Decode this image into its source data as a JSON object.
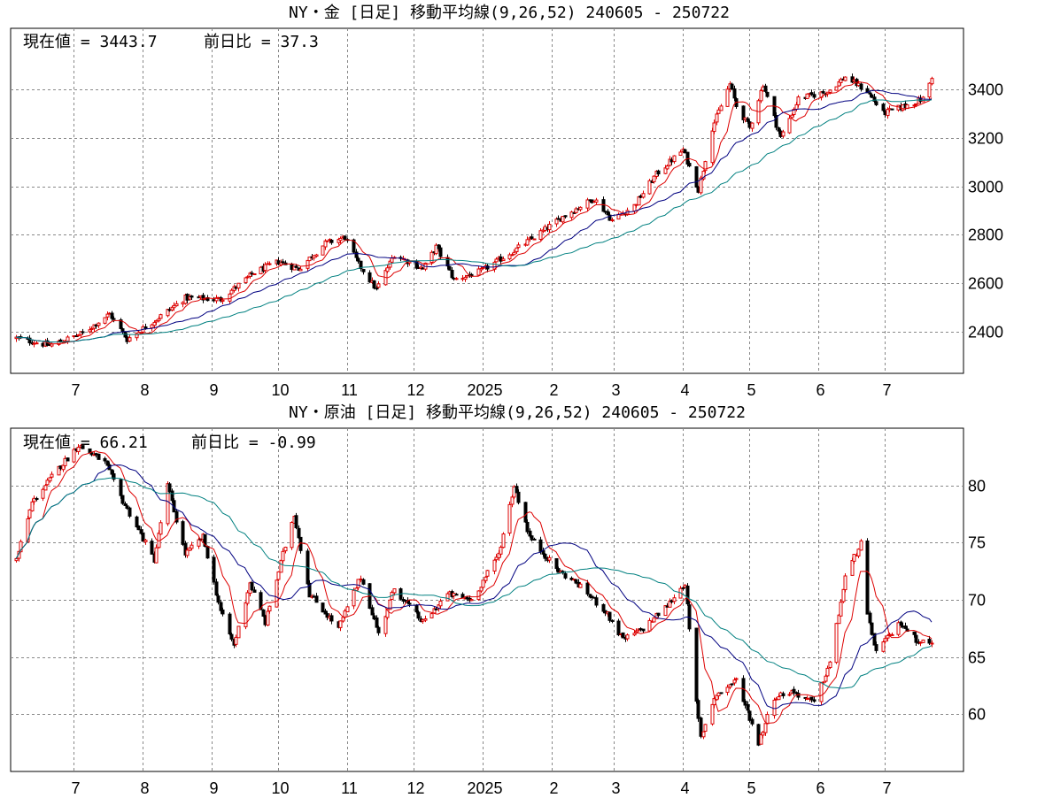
{
  "chart_data": [
    {
      "type": "candlestick",
      "title": "NY・金 [日足] 移動平均線(9,26,52) 240605 - 250722",
      "info_current": "現在値 = 3443.7",
      "info_change": "前日比 = 37.3",
      "ylim": [
        2230,
        3650
      ],
      "yticks": [
        2400,
        2600,
        2800,
        3000,
        3200,
        3400
      ],
      "xticks": [
        {
          "label": "7",
          "date": "2024-07-01"
        },
        {
          "label": "8",
          "date": "2024-08-01"
        },
        {
          "label": "9",
          "date": "2024-09-01"
        },
        {
          "label": "10",
          "date": "2024-10-01"
        },
        {
          "label": "11",
          "date": "2024-11-01"
        },
        {
          "label": "12",
          "date": "2024-12-01"
        },
        {
          "label": "2025",
          "date": "2025-01-01"
        },
        {
          "label": "2",
          "date": "2025-02-01"
        },
        {
          "label": "3",
          "date": "2025-03-01"
        },
        {
          "label": "4",
          "date": "2025-04-01"
        },
        {
          "label": "5",
          "date": "2025-05-01"
        },
        {
          "label": "6",
          "date": "2025-06-01"
        },
        {
          "label": "7",
          "date": "2025-07-01"
        }
      ],
      "grid": true,
      "moving_averages": [
        {
          "period": 9,
          "color": "#dd0000"
        },
        {
          "period": 26,
          "color": "#000080"
        },
        {
          "period": 52,
          "color": "#008080"
        }
      ],
      "close": [
        {
          "date": "2024-06-05",
          "value": 2375
        },
        {
          "date": "2024-06-20",
          "value": 2345
        },
        {
          "date": "2024-07-05",
          "value": 2395
        },
        {
          "date": "2024-07-17",
          "value": 2475
        },
        {
          "date": "2024-07-25",
          "value": 2370
        },
        {
          "date": "2024-08-05",
          "value": 2440
        },
        {
          "date": "2024-08-20",
          "value": 2540
        },
        {
          "date": "2024-09-05",
          "value": 2535
        },
        {
          "date": "2024-09-20",
          "value": 2645
        },
        {
          "date": "2024-10-01",
          "value": 2690
        },
        {
          "date": "2024-10-10",
          "value": 2660
        },
        {
          "date": "2024-10-22",
          "value": 2765
        },
        {
          "date": "2024-10-31",
          "value": 2790
        },
        {
          "date": "2024-11-06",
          "value": 2680
        },
        {
          "date": "2024-11-14",
          "value": 2575
        },
        {
          "date": "2024-11-22",
          "value": 2720
        },
        {
          "date": "2024-12-05",
          "value": 2660
        },
        {
          "date": "2024-12-11",
          "value": 2750
        },
        {
          "date": "2024-12-19",
          "value": 2615
        },
        {
          "date": "2024-12-31",
          "value": 2650
        },
        {
          "date": "2025-01-15",
          "value": 2735
        },
        {
          "date": "2025-01-24",
          "value": 2790
        },
        {
          "date": "2025-02-06",
          "value": 2875
        },
        {
          "date": "2025-02-20",
          "value": 2950
        },
        {
          "date": "2025-02-28",
          "value": 2860
        },
        {
          "date": "2025-03-10",
          "value": 2920
        },
        {
          "date": "2025-03-20",
          "value": 3050
        },
        {
          "date": "2025-04-01",
          "value": 3150
        },
        {
          "date": "2025-04-08",
          "value": 2985
        },
        {
          "date": "2025-04-14",
          "value": 3240
        },
        {
          "date": "2025-04-22",
          "value": 3420
        },
        {
          "date": "2025-04-25",
          "value": 3330
        },
        {
          "date": "2025-05-01",
          "value": 3240
        },
        {
          "date": "2025-05-07",
          "value": 3420
        },
        {
          "date": "2025-05-15",
          "value": 3200
        },
        {
          "date": "2025-05-23",
          "value": 3360
        },
        {
          "date": "2025-06-05",
          "value": 3390
        },
        {
          "date": "2025-06-13",
          "value": 3450
        },
        {
          "date": "2025-06-23",
          "value": 3390
        },
        {
          "date": "2025-06-30",
          "value": 3300
        },
        {
          "date": "2025-07-10",
          "value": 3330
        },
        {
          "date": "2025-07-18",
          "value": 3360
        },
        {
          "date": "2025-07-22",
          "value": 3443.7
        }
      ]
    },
    {
      "type": "candlestick",
      "title": "NY・原油 [日足] 移動平均線(9,26,52) 240605 - 250722",
      "info_current": "現在値 = 66.21",
      "info_change": "前日比 = -0.99",
      "ylim": [
        55,
        85
      ],
      "yticks": [
        60,
        65,
        70,
        75,
        80
      ],
      "xticks": [
        {
          "label": "7",
          "date": "2024-07-01"
        },
        {
          "label": "8",
          "date": "2024-08-01"
        },
        {
          "label": "9",
          "date": "2024-09-01"
        },
        {
          "label": "10",
          "date": "2024-10-01"
        },
        {
          "label": "11",
          "date": "2024-11-01"
        },
        {
          "label": "12",
          "date": "2024-12-01"
        },
        {
          "label": "2025",
          "date": "2025-01-01"
        },
        {
          "label": "2",
          "date": "2025-02-01"
        },
        {
          "label": "3",
          "date": "2025-03-01"
        },
        {
          "label": "4",
          "date": "2025-04-01"
        },
        {
          "label": "5",
          "date": "2025-05-01"
        },
        {
          "label": "6",
          "date": "2025-06-01"
        },
        {
          "label": "7",
          "date": "2025-07-01"
        }
      ],
      "grid": true,
      "moving_averages": [
        {
          "period": 9,
          "color": "#dd0000"
        },
        {
          "period": 26,
          "color": "#000080"
        },
        {
          "period": 52,
          "color": "#008080"
        }
      ],
      "close": [
        {
          "date": "2024-06-05",
          "value": 73.5
        },
        {
          "date": "2024-06-12",
          "value": 78.5
        },
        {
          "date": "2024-06-24",
          "value": 81.5
        },
        {
          "date": "2024-07-03",
          "value": 83.5
        },
        {
          "date": "2024-07-15",
          "value": 82.0
        },
        {
          "date": "2024-07-22",
          "value": 79.0
        },
        {
          "date": "2024-08-06",
          "value": 73.5
        },
        {
          "date": "2024-08-12",
          "value": 80.0
        },
        {
          "date": "2024-08-20",
          "value": 74.0
        },
        {
          "date": "2024-08-28",
          "value": 75.5
        },
        {
          "date": "2024-09-05",
          "value": 69.0
        },
        {
          "date": "2024-09-11",
          "value": 66.0
        },
        {
          "date": "2024-09-18",
          "value": 71.5
        },
        {
          "date": "2024-09-25",
          "value": 68.0
        },
        {
          "date": "2024-10-03",
          "value": 74.0
        },
        {
          "date": "2024-10-08",
          "value": 77.5
        },
        {
          "date": "2024-10-15",
          "value": 70.5
        },
        {
          "date": "2024-10-28",
          "value": 67.5
        },
        {
          "date": "2024-11-07",
          "value": 72.0
        },
        {
          "date": "2024-11-15",
          "value": 67.0
        },
        {
          "date": "2024-11-22",
          "value": 71.0
        },
        {
          "date": "2024-12-05",
          "value": 68.0
        },
        {
          "date": "2024-12-16",
          "value": 70.5
        },
        {
          "date": "2024-12-27",
          "value": 70.0
        },
        {
          "date": "2025-01-08",
          "value": 74.0
        },
        {
          "date": "2025-01-15",
          "value": 80.0
        },
        {
          "date": "2025-01-22",
          "value": 75.5
        },
        {
          "date": "2025-02-04",
          "value": 72.5
        },
        {
          "date": "2025-02-12",
          "value": 71.5
        },
        {
          "date": "2025-02-25",
          "value": 69.0
        },
        {
          "date": "2025-03-05",
          "value": 66.5
        },
        {
          "date": "2025-03-14",
          "value": 67.5
        },
        {
          "date": "2025-03-25",
          "value": 69.5
        },
        {
          "date": "2025-04-02",
          "value": 71.5
        },
        {
          "date": "2025-04-07",
          "value": 61.0
        },
        {
          "date": "2025-04-09",
          "value": 58.0
        },
        {
          "date": "2025-04-15",
          "value": 61.5
        },
        {
          "date": "2025-04-25",
          "value": 63.0
        },
        {
          "date": "2025-05-05",
          "value": 57.5
        },
        {
          "date": "2025-05-12",
          "value": 61.5
        },
        {
          "date": "2025-05-20",
          "value": 62.0
        },
        {
          "date": "2025-05-30",
          "value": 61.0
        },
        {
          "date": "2025-06-06",
          "value": 64.5
        },
        {
          "date": "2025-06-13",
          "value": 72.0
        },
        {
          "date": "2025-06-20",
          "value": 75.0
        },
        {
          "date": "2025-06-23",
          "value": 68.5
        },
        {
          "date": "2025-06-27",
          "value": 65.5
        },
        {
          "date": "2025-07-08",
          "value": 68.0
        },
        {
          "date": "2025-07-15",
          "value": 66.5
        },
        {
          "date": "2025-07-22",
          "value": 66.21
        }
      ]
    }
  ]
}
